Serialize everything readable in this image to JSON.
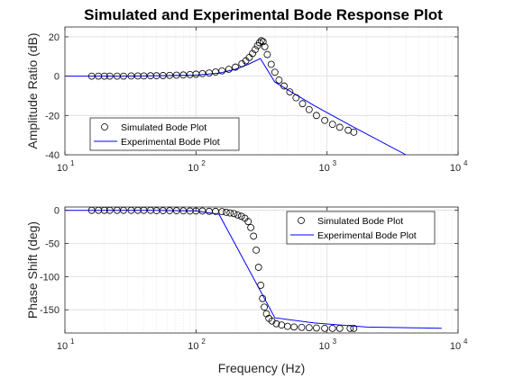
{
  "chart_data": {
    "title": "Simulated and Experimental Bode Response Plot",
    "xlabel": "Frequency (Hz)",
    "x_scale": "log",
    "xlim": [
      10,
      10000
    ],
    "x_ticks": [
      {
        "base": "10",
        "exp": "1"
      },
      {
        "base": "10",
        "exp": "2"
      },
      {
        "base": "10",
        "exp": "3"
      },
      {
        "base": "10",
        "exp": "4"
      }
    ],
    "panels": [
      {
        "type": "line",
        "ylabel": "Amplitude Ratio (dB)",
        "ylim": [
          -40,
          25
        ],
        "y_ticks": [
          -40,
          -20,
          0,
          20
        ],
        "grid": true,
        "legend_location": "bottom-left",
        "series": [
          {
            "name": "Simulated Bode Plot",
            "style": "marker-circle",
            "x": [
              16,
              18,
              20,
              22,
              25,
              28,
              32,
              36,
              40,
              45,
              50,
              56,
              63,
              71,
              80,
              90,
              100,
              112,
              126,
              141,
              158,
              178,
              200,
              224,
              240,
              255,
              270,
              283,
              295,
              305,
              315,
              325,
              335,
              350,
              375,
              400,
              430,
              470,
              520,
              580,
              650,
              730,
              830,
              960,
              1100,
              1250,
              1450,
              1600
            ],
            "y": [
              0,
              0,
              0,
              0,
              0,
              0,
              0.1,
              0.1,
              0.1,
              0.2,
              0.2,
              0.3,
              0.4,
              0.5,
              0.6,
              0.8,
              1.0,
              1.3,
              1.6,
              2.1,
              2.7,
              3.5,
              4.6,
              6.3,
              7.8,
              9.5,
              11.5,
              13.5,
              15.5,
              17,
              18,
              17.5,
              15,
              11,
              6,
              2,
              -2,
              -5,
              -8,
              -11,
              -14,
              -17,
              -20,
              -22.5,
              -24.5,
              -26,
              -27.5,
              -28.5
            ]
          },
          {
            "name": "Experimental Bode Plot",
            "style": "line-blue",
            "x": [
              10,
              30,
              100,
              150,
              200,
              250,
              310,
              400,
              800,
              1500,
              4000,
              7500
            ],
            "y": [
              0,
              0,
              0.5,
              1.5,
              3.5,
              6,
              9,
              -3,
              -15,
              -25,
              -40,
              -51
            ]
          }
        ]
      },
      {
        "type": "line",
        "ylabel": "Phase Shift (deg)",
        "ylim": [
          -185,
          5
        ],
        "y_ticks": [
          -150,
          -100,
          -50,
          0
        ],
        "grid": true,
        "legend_location": "top-right",
        "series": [
          {
            "name": "Simulated Bode Plot",
            "style": "marker-circle",
            "x": [
              16,
              18,
              20,
              22,
              25,
              28,
              32,
              36,
              40,
              45,
              50,
              56,
              63,
              71,
              80,
              90,
              100,
              112,
              126,
              141,
              158,
              170,
              182,
              195,
              208,
              222,
              236,
              250,
              262,
              275,
              288,
              300,
              312,
              322,
              332,
              345,
              360,
              380,
              410,
              450,
              500,
              560,
              640,
              730,
              830,
              960,
              1100,
              1250,
              1500,
              1600
            ],
            "y": [
              0,
              0,
              0,
              0,
              0,
              0,
              0,
              0,
              0,
              0,
              -0.5,
              -0.5,
              -0.5,
              -0.5,
              -0.8,
              -1,
              -1,
              -1,
              -1.5,
              -1.5,
              -2,
              -3,
              -4,
              -5,
              -7,
              -9,
              -12,
              -17,
              -26,
              -39,
              -60,
              -86,
              -113,
              -133,
              -146,
              -156,
              -163,
              -167,
              -171,
              -173,
              -175,
              -176,
              -176.5,
              -177,
              -177.5,
              -178,
              -178,
              -178,
              -178,
              -178
            ]
          },
          {
            "name": "Experimental Bode Plot",
            "style": "line-blue",
            "x": [
              10,
              50,
              100,
              150,
              400,
              800,
              2000,
              7500
            ],
            "y": [
              0,
              0,
              -1,
              -6,
              -162,
              -170,
              -176,
              -178
            ]
          }
        ]
      }
    ]
  },
  "colors": {
    "line": "#0000ff",
    "marker": "#000000",
    "grid": "#dcdcdc",
    "axis": "#262626"
  }
}
